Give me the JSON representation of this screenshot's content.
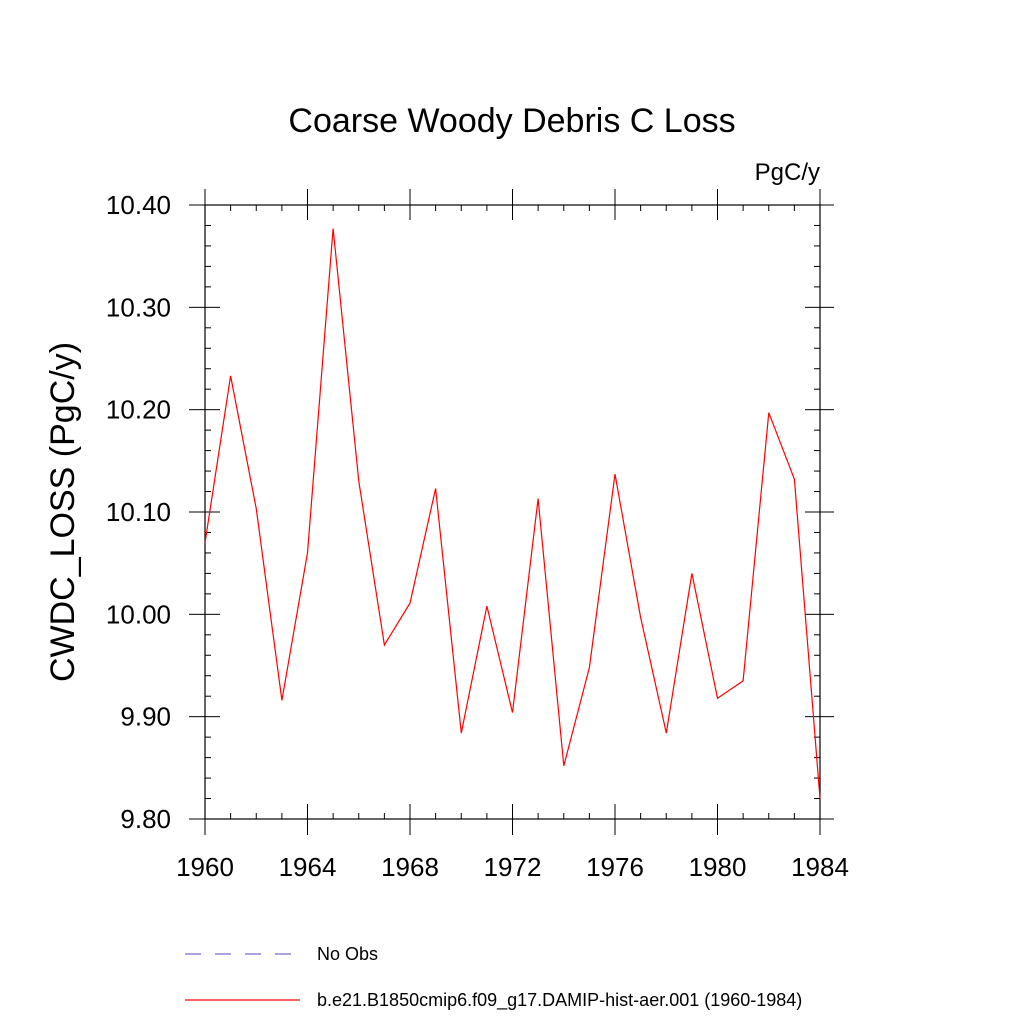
{
  "chart_data": {
    "type": "line",
    "title": "Coarse Woody Debris C Loss",
    "units": "PgC/y",
    "ylabel": "CWDC_LOSS  (PgC/y)",
    "xlabel": "",
    "xlim": [
      1960,
      1984
    ],
    "ylim": [
      9.8,
      10.4
    ],
    "xticks": [
      1960,
      1964,
      1968,
      1972,
      1976,
      1980,
      1984
    ],
    "xtick_labels": [
      "1960",
      "1964",
      "1968",
      "1972",
      "1976",
      "1980",
      "1984"
    ],
    "yticks": [
      9.8,
      9.9,
      10.0,
      10.1,
      10.2,
      10.3,
      10.4
    ],
    "ytick_labels": [
      "9.80",
      "9.90",
      "10.00",
      "10.10",
      "10.20",
      "10.30",
      "10.40"
    ],
    "grid": false,
    "legend_placement": "bottom",
    "series": [
      {
        "name": "b.e21.B1850cmip6.f09_g17.DAMIP-hist-aer.001 (1960-1984)",
        "color": "#ff0000",
        "dash": "solid",
        "x": [
          1960,
          1961,
          1962,
          1963,
          1964,
          1965,
          1966,
          1967,
          1968,
          1969,
          1970,
          1971,
          1972,
          1973,
          1974,
          1975,
          1976,
          1977,
          1978,
          1979,
          1980,
          1981,
          1982,
          1983,
          1984
        ],
        "values": [
          10.07,
          10.233,
          10.103,
          9.916,
          10.06,
          10.377,
          10.13,
          9.97,
          10.011,
          10.123,
          9.884,
          10.008,
          9.904,
          10.113,
          9.852,
          9.948,
          10.137,
          9.997,
          9.884,
          10.04,
          9.918,
          9.935,
          10.197,
          10.132,
          9.82
        ]
      }
    ],
    "legend": [
      {
        "label": "No Obs",
        "color": "#7b68c9",
        "dash": "dashed"
      },
      {
        "label": "b.e21.B1850cmip6.f09_g17.DAMIP-hist-aer.001 (1960-1984)",
        "color": "#ff0000",
        "dash": "solid"
      }
    ]
  }
}
